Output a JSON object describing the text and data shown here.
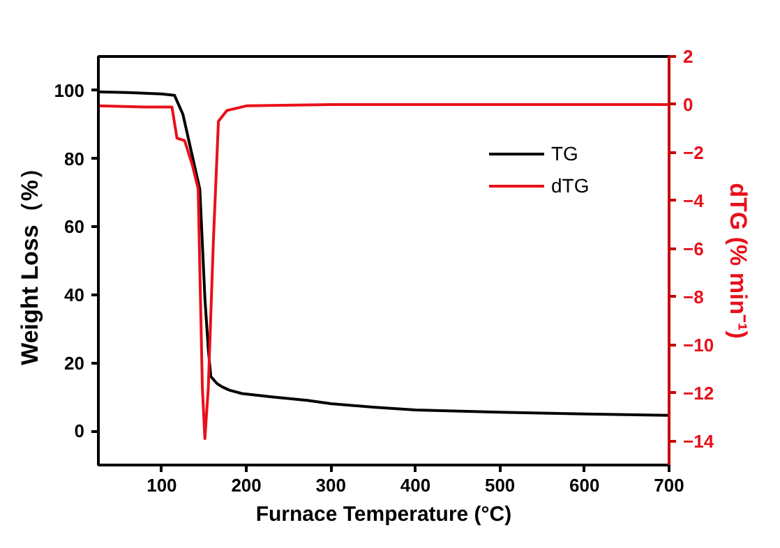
{
  "chart_data": {
    "type": "line",
    "xlabel": "Furnace Temperature (°C)",
    "ylabel": "Weight Loss（%）",
    "y2label": "dTG (% min⁻¹)",
    "xlim": [
      25,
      700
    ],
    "xticks": [
      100,
      200,
      300,
      400,
      500,
      600,
      700
    ],
    "ylim": [
      -10,
      110
    ],
    "yticks": [
      0,
      20,
      40,
      60,
      80,
      100
    ],
    "y2lim": [
      -15,
      2
    ],
    "y2ticks": [
      2,
      0,
      -2,
      -4,
      -6,
      -8,
      -10,
      -12,
      -14
    ],
    "grid": false,
    "legend": "top right",
    "marker": "none",
    "line_style": "solid",
    "series": [
      {
        "name": "TG",
        "color": "#000000",
        "x": [
          25,
          60,
          100,
          115,
          125,
          135,
          145,
          151,
          155,
          158,
          165,
          171,
          180,
          195,
          230,
          272,
          300,
          350,
          400,
          500,
          600,
          700
        ],
        "values": [
          99.6,
          99.4,
          99.0,
          98.6,
          93,
          82,
          71,
          39,
          24,
          16,
          14,
          13,
          12,
          11,
          10,
          9,
          8,
          7,
          6.2,
          5.5,
          5,
          4.6
        ]
      },
      {
        "name": "dTG",
        "color": "#e8101a",
        "axis": "y2",
        "x": [
          25,
          80,
          112,
          118,
          127,
          136,
          143,
          148,
          151,
          155,
          161,
          167,
          177,
          201,
          300,
          400,
          500,
          600,
          700
        ],
        "values": [
          -0.05,
          -0.1,
          -0.1,
          -1.4,
          -1.5,
          -2.5,
          -3.5,
          -11.8,
          -13.9,
          -11.8,
          -5.7,
          -0.7,
          -0.25,
          -0.05,
          0,
          0,
          0,
          0,
          0
        ]
      }
    ]
  }
}
